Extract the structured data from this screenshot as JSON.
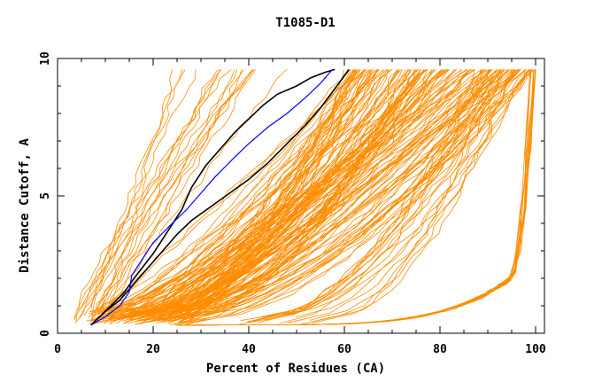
{
  "chart_data": {
    "type": "line",
    "title": "T1085-D1",
    "xlabel": "Percent of Residues (CA)",
    "ylabel": "Distance Cutoff, A",
    "xlim": [
      0,
      100
    ],
    "ylim": [
      0,
      10
    ],
    "x_ticks": [
      0,
      20,
      40,
      60,
      80,
      100
    ],
    "y_ticks": [
      0,
      5,
      10
    ],
    "colors": {
      "models": "#ff8c00",
      "reference_band": "#000000",
      "highlight": "#0000ff"
    },
    "series": [
      {
        "color": "#000000",
        "x": [
          7,
          10,
          14,
          16,
          20,
          23,
          26,
          28,
          31,
          34,
          37,
          40,
          43,
          46,
          50,
          53,
          56,
          58
        ],
        "y": [
          0.3,
          0.8,
          1.5,
          2.0,
          2.9,
          3.7,
          4.5,
          5.3,
          6.1,
          6.7,
          7.3,
          7.8,
          8.3,
          8.7,
          9.0,
          9.3,
          9.5,
          9.6
        ]
      },
      {
        "color": "#000000",
        "x": [
          7,
          10,
          13,
          16,
          19,
          22,
          25,
          28,
          32,
          36,
          40,
          44,
          48,
          52,
          55,
          58,
          61
        ],
        "y": [
          0.3,
          0.8,
          1.2,
          1.8,
          2.4,
          3.0,
          3.6,
          4.1,
          4.6,
          5.1,
          5.6,
          6.2,
          6.9,
          7.6,
          8.2,
          8.9,
          9.6
        ]
      },
      {
        "color": "#0000ff",
        "x": [
          7,
          10,
          13,
          15,
          15.5,
          17,
          20,
          24,
          27,
          30,
          33,
          37,
          40,
          44,
          48,
          52,
          55,
          57.5
        ],
        "y": [
          0.3,
          0.6,
          1.0,
          1.5,
          2.1,
          2.5,
          3.3,
          4.0,
          4.5,
          5.1,
          5.7,
          6.4,
          6.9,
          7.5,
          8.0,
          8.6,
          9.1,
          9.6
        ]
      }
    ]
  }
}
